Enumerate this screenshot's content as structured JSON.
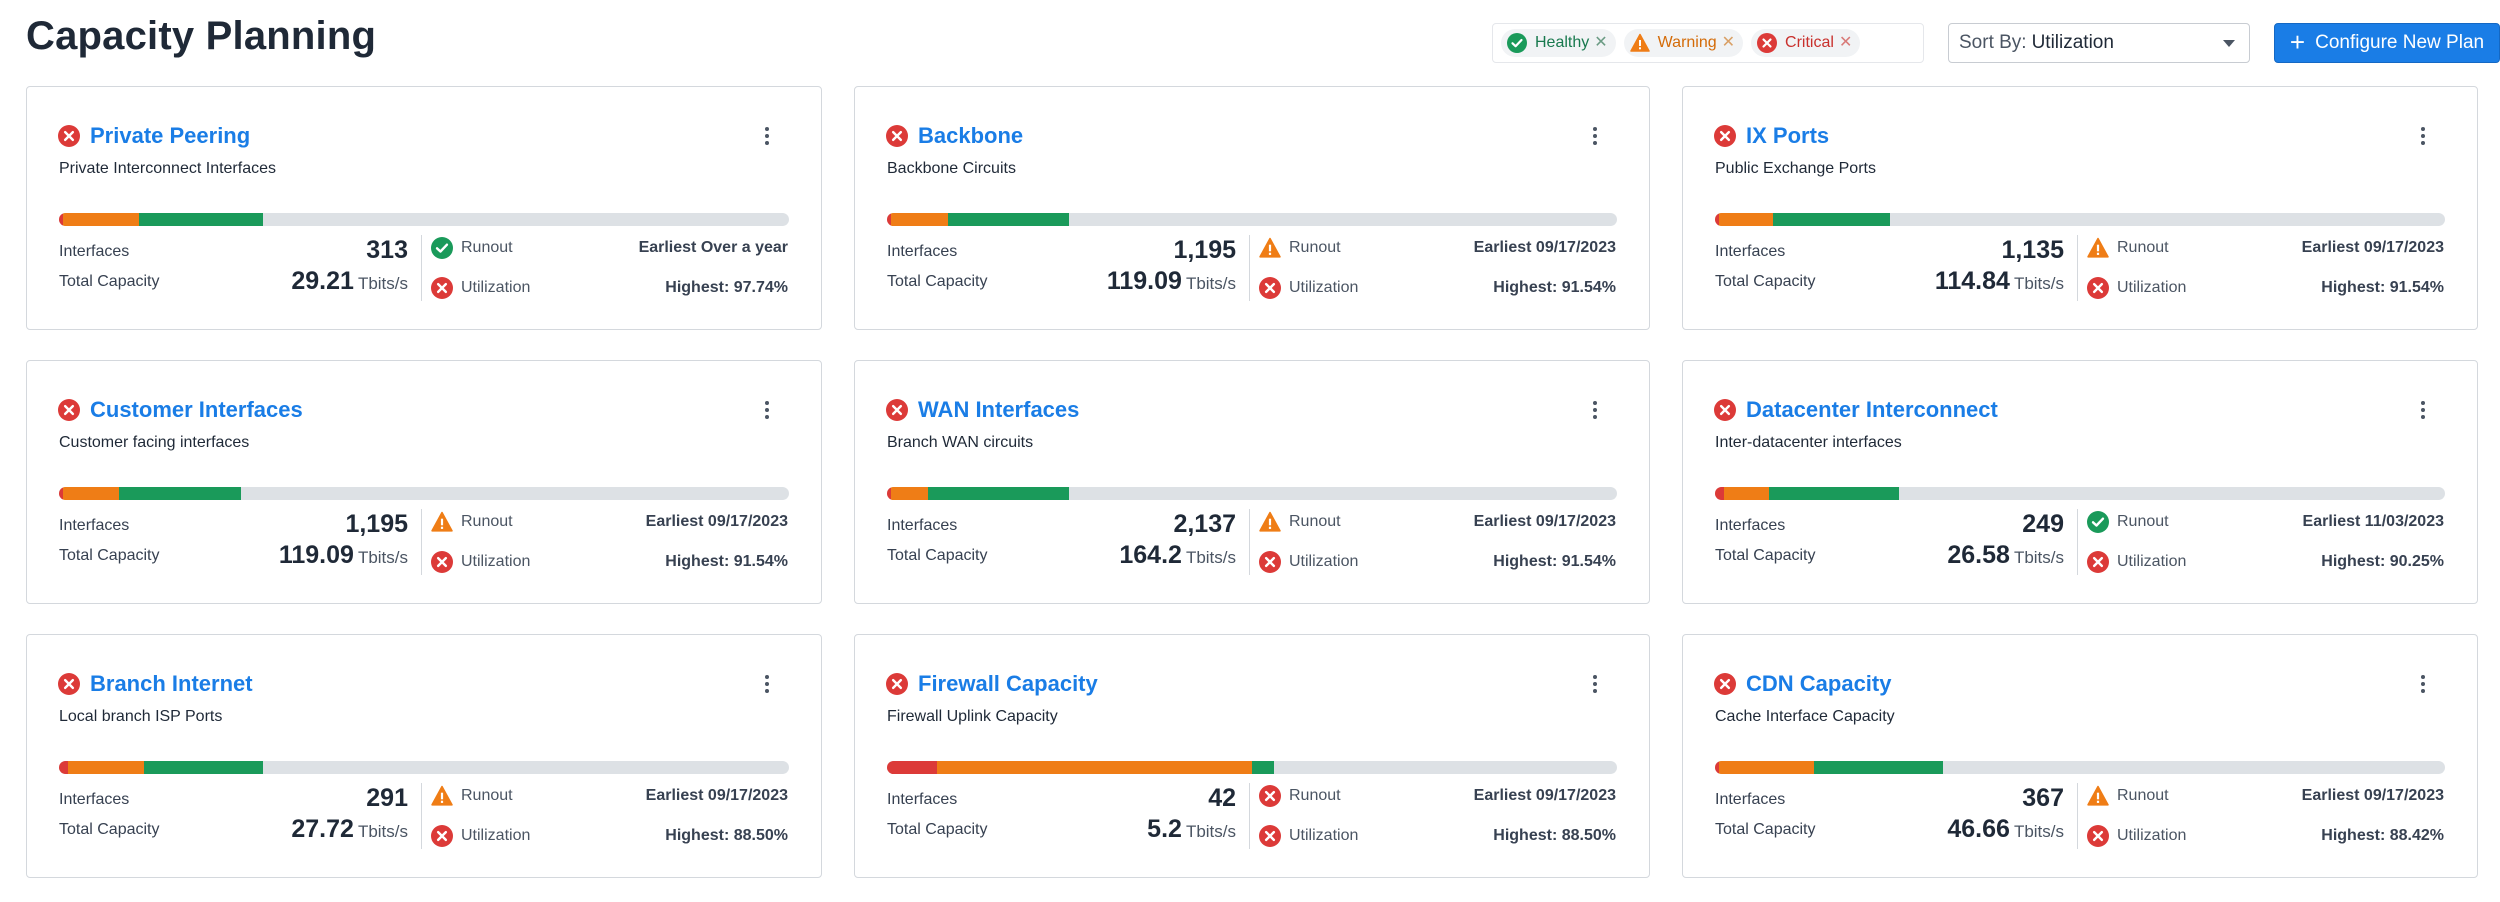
{
  "page": {
    "title": "Capacity Planning"
  },
  "filters": [
    {
      "label": "Healthy",
      "status": "healthy",
      "icon": "check-circle-icon",
      "color": "#18794e"
    },
    {
      "label": "Warning",
      "status": "warning",
      "icon": "warning-triangle-icon",
      "color": "#d46b08"
    },
    {
      "label": "Critical",
      "status": "critical",
      "icon": "x-circle-icon",
      "color": "#c9302c"
    }
  ],
  "sort": {
    "prefix": "Sort By:",
    "value": "Utilization"
  },
  "configure_button": {
    "label": "Configure New Plan",
    "icon": "plus-icon"
  },
  "labels": {
    "interfaces": "Interfaces",
    "total_capacity": "Total Capacity",
    "runout": "Runout",
    "utilization": "Utilization",
    "unit": "Tbits/s"
  },
  "colors": {
    "critical": "#dc3a38",
    "warning": "#ef7d16",
    "healthy": "#1a9a5a",
    "link": "#1a7de6",
    "track": "#dde1e5"
  },
  "plans": [
    {
      "title": "Private Peering",
      "subtitle": "Private Interconnect Interfaces",
      "status": "critical",
      "interfaces": "313",
      "capacity": "29.21",
      "runout_status": "healthy",
      "runout": "Earliest Over a year",
      "utilization_status": "critical",
      "utilization": "Highest: 97.74%",
      "bar": {
        "critical": 0.006,
        "warning": 0.104,
        "healthy": 0.17
      }
    },
    {
      "title": "Backbone",
      "subtitle": "Backbone Circuits",
      "status": "critical",
      "interfaces": "1,195",
      "capacity": "119.09",
      "runout_status": "warning",
      "runout": "Earliest 09/17/2023",
      "utilization_status": "critical",
      "utilization": "Highest: 91.54%",
      "bar": {
        "critical": 0.006,
        "warning": 0.078,
        "healthy": 0.166
      }
    },
    {
      "title": "IX Ports",
      "subtitle": "Public Exchange Ports",
      "status": "critical",
      "interfaces": "1,135",
      "capacity": "114.84",
      "runout_status": "warning",
      "runout": "Earliest 09/17/2023",
      "utilization_status": "critical",
      "utilization": "Highest: 91.54%",
      "bar": {
        "critical": 0.006,
        "warning": 0.074,
        "healthy": 0.16
      }
    },
    {
      "title": "Customer Interfaces",
      "subtitle": "Customer facing interfaces",
      "status": "critical",
      "interfaces": "1,195",
      "capacity": "119.09",
      "runout_status": "warning",
      "runout": "Earliest 09/17/2023",
      "utilization_status": "critical",
      "utilization": "Highest: 91.54%",
      "bar": {
        "critical": 0.006,
        "warning": 0.076,
        "healthy": 0.168
      }
    },
    {
      "title": "WAN Interfaces",
      "subtitle": "Branch WAN circuits",
      "status": "critical",
      "interfaces": "2,137",
      "capacity": "164.2",
      "runout_status": "warning",
      "runout": "Earliest 09/17/2023",
      "utilization_status": "critical",
      "utilization": "Highest: 91.54%",
      "bar": {
        "critical": 0.006,
        "warning": 0.05,
        "healthy": 0.194
      }
    },
    {
      "title": "Datacenter Interconnect",
      "subtitle": "Inter-datacenter interfaces",
      "status": "critical",
      "interfaces": "249",
      "capacity": "26.58",
      "runout_status": "healthy",
      "runout": "Earliest 11/03/2023",
      "utilization_status": "critical",
      "utilization": "Highest: 90.25%",
      "bar": {
        "critical": 0.012,
        "warning": 0.062,
        "healthy": 0.178
      }
    },
    {
      "title": "Branch Internet",
      "subtitle": "Local branch ISP Ports",
      "status": "critical",
      "interfaces": "291",
      "capacity": "27.72",
      "runout_status": "warning",
      "runout": "Earliest 09/17/2023",
      "utilization_status": "critical",
      "utilization": "Highest: 88.50%",
      "bar": {
        "critical": 0.012,
        "warning": 0.104,
        "healthy": 0.164
      }
    },
    {
      "title": "Firewall Capacity",
      "subtitle": "Firewall Uplink Capacity",
      "status": "critical",
      "interfaces": "42",
      "capacity": "5.2",
      "runout_status": "critical",
      "runout": "Earliest 09/17/2023",
      "utilization_status": "critical",
      "utilization": "Highest: 88.50%",
      "bar": {
        "critical": 0.068,
        "warning": 0.432,
        "healthy": 0.03
      }
    },
    {
      "title": "CDN Capacity",
      "subtitle": "Cache Interface Capacity",
      "status": "critical",
      "interfaces": "367",
      "capacity": "46.66",
      "runout_status": "warning",
      "runout": "Earliest 09/17/2023",
      "utilization_status": "critical",
      "utilization": "Highest: 88.42%",
      "bar": {
        "critical": 0.006,
        "warning": 0.13,
        "healthy": 0.176
      }
    }
  ]
}
